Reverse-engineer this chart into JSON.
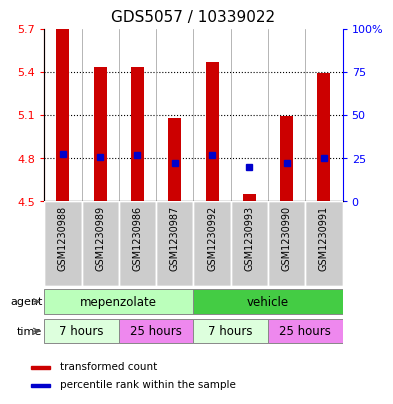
{
  "title": "GDS5057 / 10339022",
  "samples": [
    "GSM1230988",
    "GSM1230989",
    "GSM1230986",
    "GSM1230987",
    "GSM1230992",
    "GSM1230993",
    "GSM1230990",
    "GSM1230991"
  ],
  "bar_values": [
    5.7,
    5.43,
    5.43,
    5.08,
    5.47,
    4.55,
    5.09,
    5.39
  ],
  "bar_base": 4.5,
  "blue_dot_values": [
    4.83,
    4.81,
    4.82,
    4.77,
    4.82,
    4.74,
    4.77,
    4.8
  ],
  "ylim": [
    4.5,
    5.7
  ],
  "yticks_left": [
    4.5,
    4.8,
    5.1,
    5.4,
    5.7
  ],
  "yticks_right": [
    0,
    25,
    50,
    75,
    100
  ],
  "bar_color": "#cc0000",
  "dot_color": "#0000cc",
  "agents": [
    [
      "mepenzolate",
      0,
      4,
      "#bbffbb"
    ],
    [
      "vehicle",
      4,
      8,
      "#44cc44"
    ]
  ],
  "times": [
    [
      "7 hours",
      0,
      2,
      "#ddffdd"
    ],
    [
      "25 hours",
      2,
      4,
      "#ee88ee"
    ],
    [
      "7 hours",
      4,
      6,
      "#ddffdd"
    ],
    [
      "25 hours",
      6,
      8,
      "#ee88ee"
    ]
  ],
  "grid_color": "#000000",
  "sample_bg": "#cccccc",
  "title_fontsize": 11,
  "tick_fontsize": 8,
  "bar_width": 0.35
}
